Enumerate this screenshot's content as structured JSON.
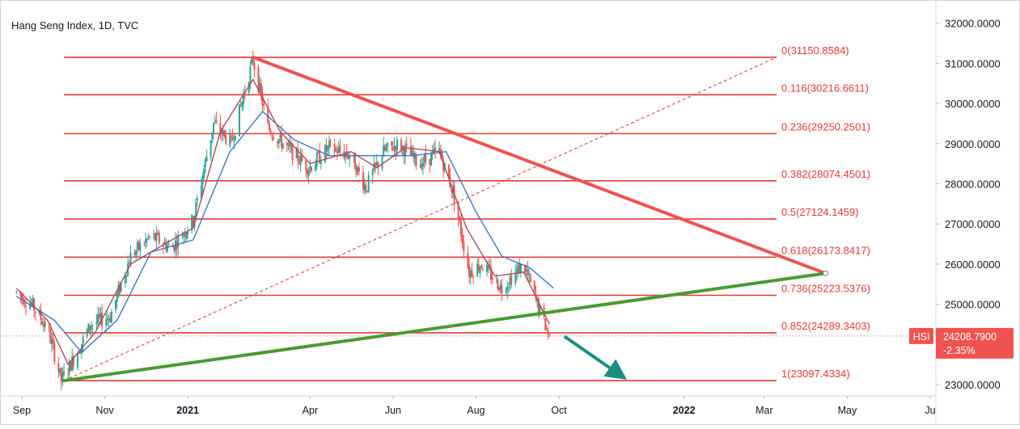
{
  "header": {
    "title": "Hang Seng Index, 1D, TVC"
  },
  "colors": {
    "fib": "#e53935",
    "downtrend": "#ef5350",
    "uptrend": "#4a9a32",
    "arrow": "#1e8c84",
    "up_candle": "#26a69a",
    "down_candle": "#ef5350",
    "ma_fast": "#b04a5a",
    "ma_slow": "#3a78c8",
    "badge": "#ef5350",
    "grid": "#e0e3eb"
  },
  "chart_data": {
    "type": "candlestick",
    "symbol": "HSI",
    "title": "Hang Seng Index, 1D, TVC",
    "ylim": [
      22800,
      32200
    ],
    "y_ticks": [
      "32000.0000",
      "31000.0000",
      "30000.0000",
      "29000.0000",
      "28000.0000",
      "27000.0000",
      "26000.0000",
      "25000.0000",
      "24000.0000",
      "23000.0000"
    ],
    "x_ticks": [
      {
        "label": "Sep",
        "date": "2020-09-01"
      },
      {
        "label": "Nov",
        "date": "2020-11-01"
      },
      {
        "label": "2021",
        "date": "2021-01-01",
        "bold": true
      },
      {
        "label": "Apr",
        "date": "2021-04-01"
      },
      {
        "label": "Jun",
        "date": "2021-06-01"
      },
      {
        "label": "Aug",
        "date": "2021-08-01"
      },
      {
        "label": "Oct",
        "date": "2021-10-01"
      },
      {
        "label": "2022",
        "date": "2022-01-01",
        "bold": true
      },
      {
        "label": "Mar",
        "date": "2022-03-01"
      },
      {
        "label": "May",
        "date": "2022-05-01"
      },
      {
        "label": "Ju",
        "date": "2022-07-01"
      }
    ],
    "price_path": [
      {
        "date": "2020-08-28",
        "value": 25300
      },
      {
        "date": "2020-09-08",
        "value": 25000
      },
      {
        "date": "2020-09-20",
        "value": 24400
      },
      {
        "date": "2020-09-30",
        "value": 23100
      },
      {
        "date": "2020-10-10",
        "value": 23700
      },
      {
        "date": "2020-10-22",
        "value": 24500
      },
      {
        "date": "2020-11-05",
        "value": 24700
      },
      {
        "date": "2020-11-20",
        "value": 26200
      },
      {
        "date": "2020-12-05",
        "value": 26700
      },
      {
        "date": "2020-12-20",
        "value": 26400
      },
      {
        "date": "2021-01-05",
        "value": 27100
      },
      {
        "date": "2021-01-20",
        "value": 29500
      },
      {
        "date": "2021-02-02",
        "value": 29000
      },
      {
        "date": "2021-02-18",
        "value": 31100
      },
      {
        "date": "2021-03-01",
        "value": 29400
      },
      {
        "date": "2021-03-15",
        "value": 28900
      },
      {
        "date": "2021-03-31",
        "value": 28400
      },
      {
        "date": "2021-04-15",
        "value": 28900
      },
      {
        "date": "2021-05-01",
        "value": 28700
      },
      {
        "date": "2021-05-12",
        "value": 27900
      },
      {
        "date": "2021-05-25",
        "value": 28800
      },
      {
        "date": "2021-06-05",
        "value": 29000
      },
      {
        "date": "2021-06-20",
        "value": 28500
      },
      {
        "date": "2021-07-05",
        "value": 28800
      },
      {
        "date": "2021-07-15",
        "value": 27800
      },
      {
        "date": "2021-07-27",
        "value": 25800
      },
      {
        "date": "2021-08-05",
        "value": 26000
      },
      {
        "date": "2021-08-20",
        "value": 25400
      },
      {
        "date": "2021-09-05",
        "value": 26000
      },
      {
        "date": "2021-09-15",
        "value": 25000
      },
      {
        "date": "2021-09-24",
        "value": 24200
      }
    ],
    "ma_fast_path": [
      {
        "date": "2020-08-28",
        "value": 25400
      },
      {
        "date": "2020-09-20",
        "value": 24600
      },
      {
        "date": "2020-10-05",
        "value": 23500
      },
      {
        "date": "2020-10-25",
        "value": 24300
      },
      {
        "date": "2020-11-20",
        "value": 26000
      },
      {
        "date": "2020-12-15",
        "value": 26500
      },
      {
        "date": "2021-01-05",
        "value": 26900
      },
      {
        "date": "2021-01-25",
        "value": 29300
      },
      {
        "date": "2021-02-18",
        "value": 30600
      },
      {
        "date": "2021-03-10",
        "value": 29300
      },
      {
        "date": "2021-04-01",
        "value": 28500
      },
      {
        "date": "2021-05-01",
        "value": 28800
      },
      {
        "date": "2021-05-20",
        "value": 28400
      },
      {
        "date": "2021-06-10",
        "value": 28900
      },
      {
        "date": "2021-07-05",
        "value": 28800
      },
      {
        "date": "2021-07-25",
        "value": 26900
      },
      {
        "date": "2021-08-15",
        "value": 25700
      },
      {
        "date": "2021-09-05",
        "value": 25800
      },
      {
        "date": "2021-09-24",
        "value": 24500
      }
    ],
    "ma_slow_path": [
      {
        "date": "2020-08-28",
        "value": 25200
      },
      {
        "date": "2020-09-25",
        "value": 24600
      },
      {
        "date": "2020-10-15",
        "value": 23800
      },
      {
        "date": "2020-11-10",
        "value": 24600
      },
      {
        "date": "2020-12-05",
        "value": 26300
      },
      {
        "date": "2021-01-05",
        "value": 26600
      },
      {
        "date": "2021-02-01",
        "value": 28800
      },
      {
        "date": "2021-02-25",
        "value": 29800
      },
      {
        "date": "2021-03-20",
        "value": 29100
      },
      {
        "date": "2021-04-15",
        "value": 28700
      },
      {
        "date": "2021-05-15",
        "value": 28700
      },
      {
        "date": "2021-06-15",
        "value": 28700
      },
      {
        "date": "2021-07-10",
        "value": 28800
      },
      {
        "date": "2021-08-01",
        "value": 27300
      },
      {
        "date": "2021-08-20",
        "value": 26200
      },
      {
        "date": "2021-09-10",
        "value": 25900
      },
      {
        "date": "2021-09-27",
        "value": 25400
      }
    ],
    "fib_levels": [
      {
        "label": "0(31150.8584)",
        "value": 31150.8584
      },
      {
        "label": "0.116(30216.6611)",
        "value": 30216.6611
      },
      {
        "label": "0.236(29250.2501)",
        "value": 29250.2501
      },
      {
        "label": "0.382(28074.4501)",
        "value": 28074.4501
      },
      {
        "label": "0.5(27124.1459)",
        "value": 27124.1459
      },
      {
        "label": "0.618(26173.8417)",
        "value": 26173.8417
      },
      {
        "label": "0.736(25223.5376)",
        "value": 25223.5376
      },
      {
        "label": "0.852(24289.3403)",
        "value": 24289.3403
      },
      {
        "label": "1(23097.4334)",
        "value": 23097.4334
      }
    ],
    "fib_range": {
      "start_date": "2020-10-02",
      "end_date": "2022-03-10"
    },
    "fib_diagonal": {
      "start": {
        "date": "2020-10-02",
        "value": 23097.4334
      },
      "end": {
        "date": "2022-03-10",
        "value": 31150.8584
      }
    },
    "downtrend_line": {
      "start": {
        "date": "2021-02-18",
        "value": 31150.8584
      },
      "end": {
        "date": "2022-04-15",
        "value": 25770
      }
    },
    "uptrend_line": {
      "start": {
        "date": "2020-10-02",
        "value": 23097.4334
      },
      "end": {
        "date": "2022-04-15",
        "value": 25770
      }
    },
    "forecast_arrow": {
      "start": {
        "date": "2021-10-05",
        "value": 24200
      },
      "end": {
        "date": "2021-11-20",
        "value": 23120
      }
    },
    "last_price": {
      "value": 24208.79,
      "label": "24208.7900",
      "change": "-2.35%",
      "symbol": "HSI"
    }
  }
}
